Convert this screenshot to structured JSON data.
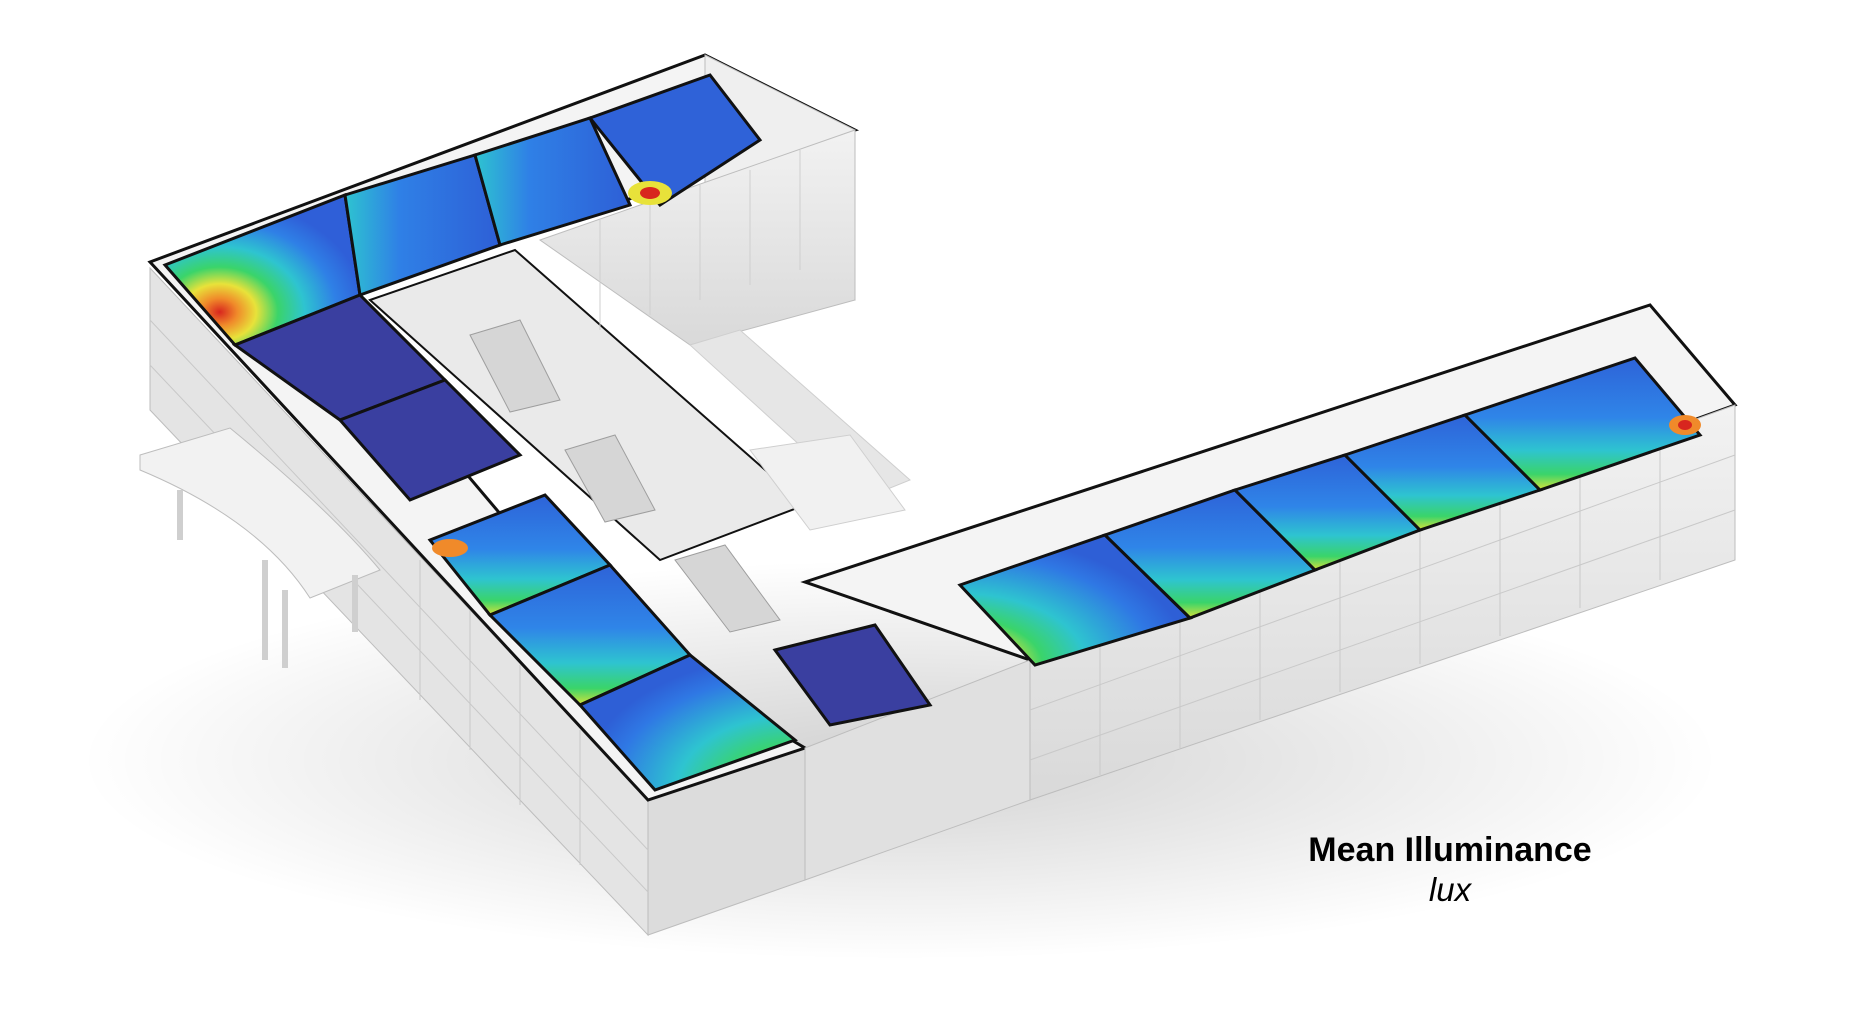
{
  "legend": {
    "title": "Mean Illuminance",
    "unit": "lux"
  },
  "colors": {
    "low": "#3a3fa0",
    "blue": "#2f6ee0",
    "cyan": "#2ec4d0",
    "green": "#3ad46a",
    "yellow": "#e8e23a",
    "orange": "#f08a2a",
    "red": "#d8261e",
    "wall": "#eeeeee",
    "outline": "#111111"
  }
}
